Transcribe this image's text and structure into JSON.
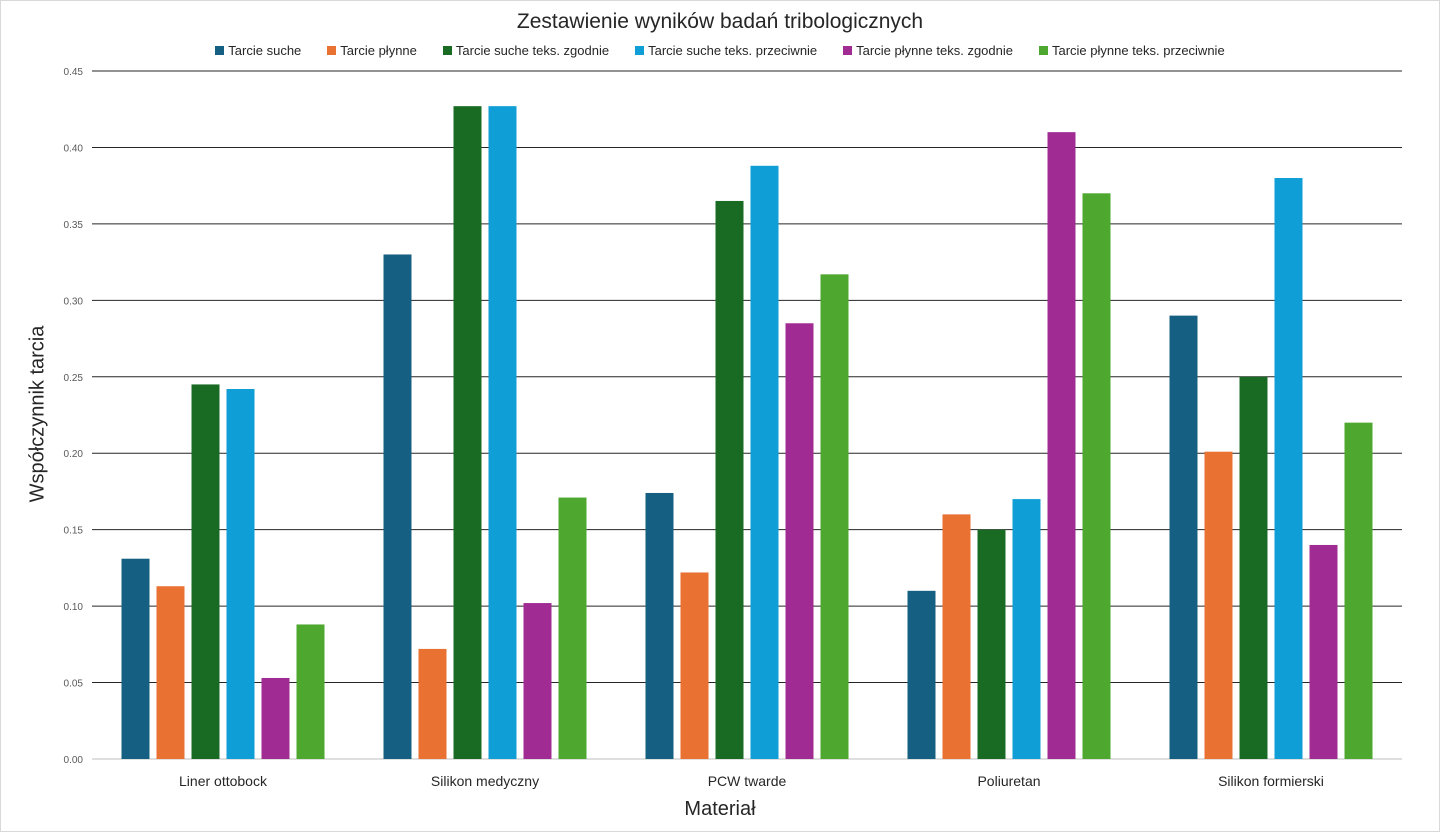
{
  "chart_data": {
    "type": "bar",
    "title": "Zestawienie wyników badań tribologicznych",
    "xlabel": "Materiał",
    "ylabel": "Współczynnik tarcia",
    "ylim": [
      0,
      0.45
    ],
    "yticks": [
      "0.00",
      "0.05",
      "0.10",
      "0.15",
      "0.20",
      "0.25",
      "0.30",
      "0.35",
      "0.40",
      "0.45"
    ],
    "grid": true,
    "legend_position": "top",
    "categories": [
      "Liner ottobock",
      "Silikon medyczny",
      "PCW twarde",
      "Poliuretan",
      "Silikon formierski"
    ],
    "series": [
      {
        "name": "Tarcie suche",
        "color": "#156082",
        "values": [
          0.131,
          0.33,
          0.174,
          0.11,
          0.29
        ]
      },
      {
        "name": "Tarcie płynne",
        "color": "#E97132",
        "values": [
          0.113,
          0.072,
          0.122,
          0.16,
          0.201
        ]
      },
      {
        "name": "Tarcie suche teks. zgodnie",
        "color": "#196B24",
        "values": [
          0.245,
          0.427,
          0.365,
          0.15,
          0.25
        ]
      },
      {
        "name": "Tarcie suche teks. przeciwnie",
        "color": "#0F9ED5",
        "values": [
          0.242,
          0.427,
          0.388,
          0.17,
          0.38
        ]
      },
      {
        "name": "Tarcie płynne teks. zgodnie",
        "color": "#A02B93",
        "values": [
          0.053,
          0.102,
          0.285,
          0.41,
          0.14
        ]
      },
      {
        "name": "Tarcie płynne teks. przeciwnie",
        "color": "#4EA72E",
        "values": [
          0.088,
          0.171,
          0.317,
          0.37,
          0.22
        ]
      }
    ]
  }
}
